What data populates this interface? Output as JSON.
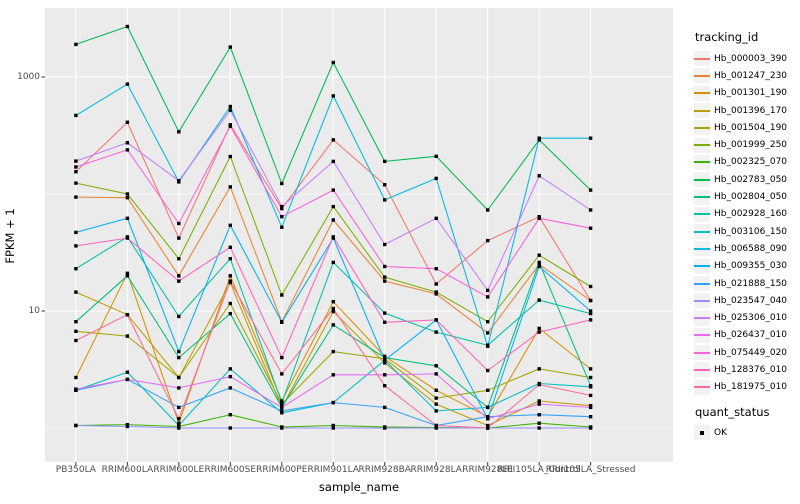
{
  "style": {
    "panel_bg": "#EBEBEB",
    "grid_color": "#FFFFFF",
    "tick_mark_color": "#333333",
    "tick_label_color": "#4D4D4D",
    "text_color": "#000000",
    "point_color": "#000000",
    "legend_key_bg": "#F2F2F2"
  },
  "figure": {
    "y_axis": {
      "title": "FPKM + 1",
      "tick_labels": [
        "1000",
        "10"
      ]
    },
    "x_axis": {
      "title": "sample_name"
    },
    "legend": {
      "title": "tracking_id",
      "quant_status_title": "quant_status",
      "quant_status_items": [
        {
          "label": "OK",
          "marker": "black-square"
        }
      ]
    }
  },
  "chart_data": {
    "type": "line",
    "xlabel": "sample_name",
    "ylabel": "FPKM + 1",
    "y_scale": "log10",
    "y_major_breaks": [
      10,
      1000
    ],
    "y_minor_breaks": [
      1,
      100
    ],
    "grid": true,
    "legend_position": "right",
    "point_marker": "black-square",
    "quant_status": "OK",
    "categories": [
      "PB350LA",
      "RRIM600LA",
      "RRIM600LE",
      "RRIM600SE",
      "RRIM600PE",
      "RRIM901LA",
      "RRIM928BA",
      "RRIM928LA",
      "RRIM928LE",
      "RRII105LA_Control",
      "RRII105LA_Stressed"
    ],
    "series": [
      {
        "name": "Hb_000003_390",
        "color": "#F8766D",
        "values": [
          155,
          410,
          42,
          390,
          75,
          290,
          120,
          17,
          40,
          64,
          12.3
        ]
      },
      {
        "name": "Hb_001247_230",
        "color": "#EA8331",
        "values": [
          94,
          93,
          20,
          115,
          8.1,
          60,
          18,
          14,
          6.5,
          25,
          12.3
        ]
      },
      {
        "name": "Hb_001301_190",
        "color": "#D89000",
        "values": [
          2.7,
          21,
          1.1,
          20,
          1.7,
          12,
          4.1,
          2.1,
          1.25,
          7.1,
          3.2
        ]
      },
      {
        "name": "Hb_001396_170",
        "color": "#C09B00",
        "values": [
          14.5,
          9.3,
          2.7,
          17.5,
          1.5,
          9.9,
          3.6,
          1.6,
          1.05,
          1.7,
          1.55
        ]
      },
      {
        "name": "Hb_001504_190",
        "color": "#A3A500",
        "values": [
          6.7,
          6.1,
          2.7,
          11.6,
          1.6,
          4.5,
          3.9,
          1.8,
          2.1,
          3.2,
          2.7
        ]
      },
      {
        "name": "Hb_001999_250",
        "color": "#7CAE00",
        "values": [
          124,
          100,
          28,
          209,
          13.7,
          78,
          19.5,
          14.5,
          8.1,
          30,
          16.2
        ]
      },
      {
        "name": "Hb_002325_070",
        "color": "#39B600",
        "values": [
          1.05,
          1.07,
          1.03,
          1.3,
          1.02,
          1.05,
          1.02,
          1.01,
          1.0,
          1.1,
          1.02
        ]
      },
      {
        "name": "Hb_002783_050",
        "color": "#00BB4E",
        "values": [
          1900,
          2700,
          340,
          1800,
          123,
          1330,
          190,
          210,
          73,
          290,
          108
        ]
      },
      {
        "name": "Hb_002804_050",
        "color": "#00BF7D",
        "values": [
          8.1,
          20,
          4.0,
          9.5,
          1.5,
          7.6,
          4.0,
          3.4,
          1.5,
          26,
          2.3
        ]
      },
      {
        "name": "Hb_002928_160",
        "color": "#00C1A3",
        "values": [
          23,
          43,
          9.0,
          28,
          1.65,
          26,
          9.6,
          6.6,
          5.1,
          12.4,
          9.5
        ]
      },
      {
        "name": "Hb_003106_150",
        "color": "#00BFC4",
        "values": [
          2.1,
          3.0,
          1.05,
          3.2,
          1.35,
          1.65,
          3.8,
          1.4,
          1.5,
          2.4,
          2.25
        ]
      },
      {
        "name": "Hb_006588_090",
        "color": "#00BAE0",
        "values": [
          470,
          870,
          127,
          560,
          52,
          690,
          89,
          136,
          5.0,
          300,
          300
        ]
      },
      {
        "name": "Hb_009355_030",
        "color": "#00B0F6",
        "values": [
          47,
          62,
          4.5,
          54,
          8.0,
          42,
          3.8,
          8.4,
          1.2,
          24,
          10
        ]
      },
      {
        "name": "Hb_021888_150",
        "color": "#35A2FF",
        "values": [
          2.1,
          2.6,
          1.5,
          2.2,
          1.4,
          1.65,
          1.5,
          1.05,
          1.25,
          1.3,
          1.25
        ]
      },
      {
        "name": "Hb_023547_040",
        "color": "#9590FF",
        "values": [
          1.05,
          1.03,
          1.0,
          1.0,
          1.0,
          1.0,
          1.0,
          1.0,
          1.0,
          1.0,
          1.0
        ]
      },
      {
        "name": "Hb_025306_010",
        "color": "#C77CFF",
        "values": [
          191,
          274,
          130,
          520,
          78,
          190,
          37,
          62,
          15,
          143,
          73
        ]
      },
      {
        "name": "Hb_026437_010",
        "color": "#E76BF3",
        "values": [
          2.15,
          2.6,
          2.2,
          2.75,
          1.5,
          2.85,
          2.85,
          2.9,
          1.2,
          1.6,
          1.5
        ]
      },
      {
        "name": "Hb_075449_020",
        "color": "#FA62DB",
        "values": [
          170,
          238,
          56,
          380,
          64,
          108,
          24,
          23,
          13.2,
          62,
          51
        ]
      },
      {
        "name": "Hb_128376_010",
        "color": "#FF62BC",
        "values": [
          36,
          42,
          18,
          35,
          4.0,
          43,
          8.0,
          8.4,
          3.1,
          6.6,
          8.4
        ]
      },
      {
        "name": "Hb_181975_010",
        "color": "#FF6A98",
        "values": [
          5.6,
          9.3,
          1.2,
          18,
          2.9,
          10.5,
          2.3,
          1.05,
          1.0,
          2.35,
          1.9
        ]
      }
    ]
  }
}
